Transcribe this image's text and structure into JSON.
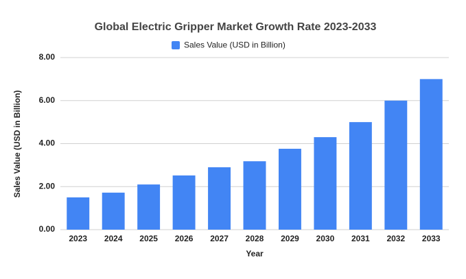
{
  "chart_data": {
    "type": "bar",
    "title": "Global Electric Gripper Market Growth Rate 2023-2033",
    "x_label": "Year",
    "y_label": "Sales Value (USD in Billion)",
    "categories": [
      "2023",
      "2024",
      "2025",
      "2026",
      "2027",
      "2028",
      "2029",
      "2030",
      "2031",
      "2032",
      "2033"
    ],
    "series": [
      {
        "name": "Sales Value (USD in Billion)",
        "color": "#4285f4",
        "values": [
          1.5,
          1.72,
          2.1,
          2.52,
          2.9,
          3.18,
          3.76,
          4.3,
          5.0,
          6.0,
          7.0
        ]
      }
    ],
    "ylim": [
      0,
      8
    ],
    "yticks": [
      {
        "value": 0,
        "label": "0.00"
      },
      {
        "value": 2,
        "label": "2.00"
      },
      {
        "value": 4,
        "label": "4.00"
      },
      {
        "value": 6,
        "label": "6.00"
      },
      {
        "value": 8,
        "label": "8.00"
      }
    ],
    "grid": true,
    "legend": "top"
  }
}
